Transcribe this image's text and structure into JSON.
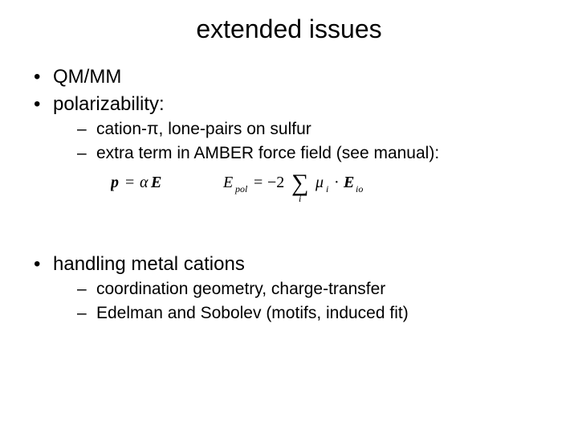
{
  "title": "extended issues",
  "bullets": {
    "b1": "QM/MM",
    "b2": "polarizability:",
    "b2_sub1": "cation-π, lone-pairs on sulfur",
    "b2_sub2": "extra term in AMBER force field (see manual):",
    "b3": "handling metal cations",
    "b3_sub1": "coordination geometry, charge-transfer",
    "b3_sub2": "Edelman and Sobolev (motifs, induced fit)"
  },
  "equations": {
    "eq1_lhs": "p",
    "eq1_eq": "=",
    "eq1_alpha": "α",
    "eq1_E": "E",
    "eq2_lhs": "E",
    "eq2_lhs_sub": "pol",
    "eq2_eq": "=",
    "eq2_coef": "−2",
    "eq2_sigma": "∑",
    "eq2_sigma_idx": "i",
    "eq2_mu": "μ",
    "eq2_mu_sub": "i",
    "eq2_dot": "·",
    "eq2_E": "E",
    "eq2_E_sub": "io"
  },
  "style": {
    "background_color": "#ffffff",
    "text_color": "#000000",
    "title_fontsize": 32,
    "body_fontsize": 24,
    "sub_fontsize": 21,
    "font_family": "Arial"
  }
}
